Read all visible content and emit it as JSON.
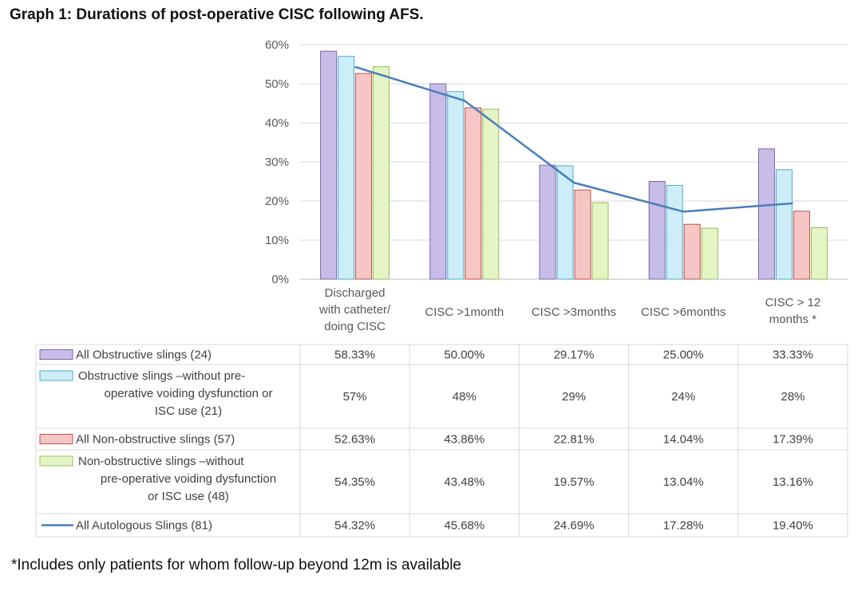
{
  "title": "Graph 1: Durations of post-operative CISC following AFS.",
  "footnote": "*Includes only patients for whom follow-up beyond 12m is available",
  "chart_data": {
    "type": "bar",
    "categories": [
      [
        "Discharged",
        "with catheter/",
        "doing CISC"
      ],
      [
        "CISC >1month"
      ],
      [
        "CISC >3months"
      ],
      [
        "CISC >6months"
      ],
      [
        "CISC > 12",
        "months *"
      ]
    ],
    "ylim": [
      0,
      60
    ],
    "yticks": [
      0,
      10,
      20,
      30,
      40,
      50,
      60
    ],
    "ytick_labels": [
      "0%",
      "10%",
      "20%",
      "30%",
      "40%",
      "50%",
      "60%"
    ],
    "grid": true,
    "legend": "data-table-below",
    "series": [
      {
        "name": "All Obstructive slings (24)",
        "name_lines": [
          "All Obstructive slings (24)"
        ],
        "kind": "bar",
        "color": "#c8bde6",
        "edge": "#7b65ad",
        "values": [
          58.33,
          50.0,
          29.17,
          25.0,
          33.33
        ],
        "labels": [
          "58.33%",
          "50.00%",
          "29.17%",
          "25.00%",
          "33.33%"
        ]
      },
      {
        "name": "Obstructive slings –without pre-operative voiding dysfunction or ISC use (21)",
        "name_lines": [
          "Obstructive slings –without pre-",
          "operative voiding dysfunction or",
          "ISC use (21)"
        ],
        "kind": "bar",
        "color": "#cdeef8",
        "edge": "#4bacc6",
        "values": [
          57,
          48,
          29,
          24,
          28
        ],
        "labels": [
          "57%",
          "48%",
          "29%",
          "24%",
          "28%"
        ]
      },
      {
        "name": "All Non-obstructive slings (57)",
        "name_lines": [
          "All Non-obstructive slings (57)"
        ],
        "kind": "bar",
        "color": "#f6c6c5",
        "edge": "#c0504d",
        "values": [
          52.63,
          43.86,
          22.81,
          14.04,
          17.39
        ],
        "labels": [
          "52.63%",
          "43.86%",
          "22.81%",
          "14.04%",
          "17.39%"
        ]
      },
      {
        "name": "Non-obstructive slings –without pre-operative voiding dysfunction or ISC use (48)",
        "name_lines": [
          "Non-obstructive slings –without",
          "pre-operative voiding dysfunction",
          "or ISC use (48)"
        ],
        "kind": "bar",
        "color": "#e4f4c4",
        "edge": "#9bbb59",
        "values": [
          54.35,
          43.48,
          19.57,
          13.04,
          13.16
        ],
        "labels": [
          "54.35%",
          "43.48%",
          "19.57%",
          "13.04%",
          "13.16%"
        ]
      },
      {
        "name": "All Autologous Slings (81)",
        "name_lines": [
          "All Autologous Slings (81)"
        ],
        "kind": "line",
        "color": "#4a7ebb",
        "values": [
          54.32,
          45.68,
          24.69,
          17.28,
          19.4
        ],
        "labels": [
          "54.32%",
          "45.68%",
          "24.69%",
          "17.28%",
          "19.40%"
        ]
      }
    ]
  }
}
